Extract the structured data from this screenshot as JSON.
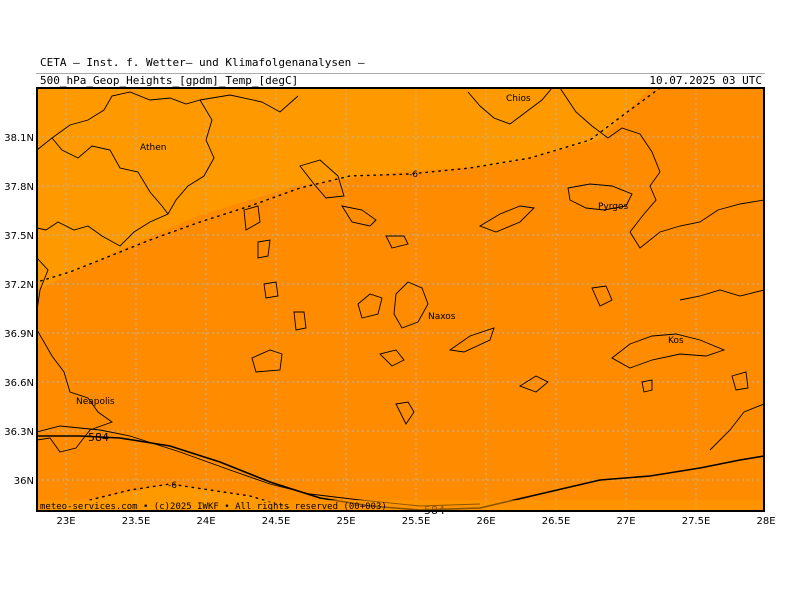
{
  "header": {
    "org_line": "CETA — Inst. f. Wetter— und Klimafolgenanalysen —",
    "field": "500_hPa_Geop_Heights_[gpdm]_Temp_[degC]",
    "valid_time": "10.07.2025 03 UTC"
  },
  "axes": {
    "lat_labels": [
      "38.1N",
      "37.8N",
      "37.5N",
      "37.2N",
      "36.9N",
      "36.6N",
      "36.3N",
      "36N"
    ],
    "lon_labels": [
      "23E",
      "23.5E",
      "24E",
      "24.5E",
      "25E",
      "25.5E",
      "26E",
      "26.5E",
      "27E",
      "27.5E",
      "28E"
    ]
  },
  "places": {
    "athen": "Athen",
    "chios": "Chios",
    "pyrgos": "Pyrgos",
    "naxos": "Naxos",
    "kos": "Kos",
    "neapolis": "Neapolis"
  },
  "contours": {
    "geop_584_a": "584",
    "geop_584_b": "584",
    "temp_m6_a": "-6",
    "temp_m6_b": "-6"
  },
  "footer": "meteo-services.com • (c)2025 IWKF • All rights reserved (00+003)",
  "colors": {
    "temp_warm": "#ff9900",
    "temp_main": "#ff8a00",
    "coast": "#000000",
    "grid": "#b3b3b3"
  }
}
